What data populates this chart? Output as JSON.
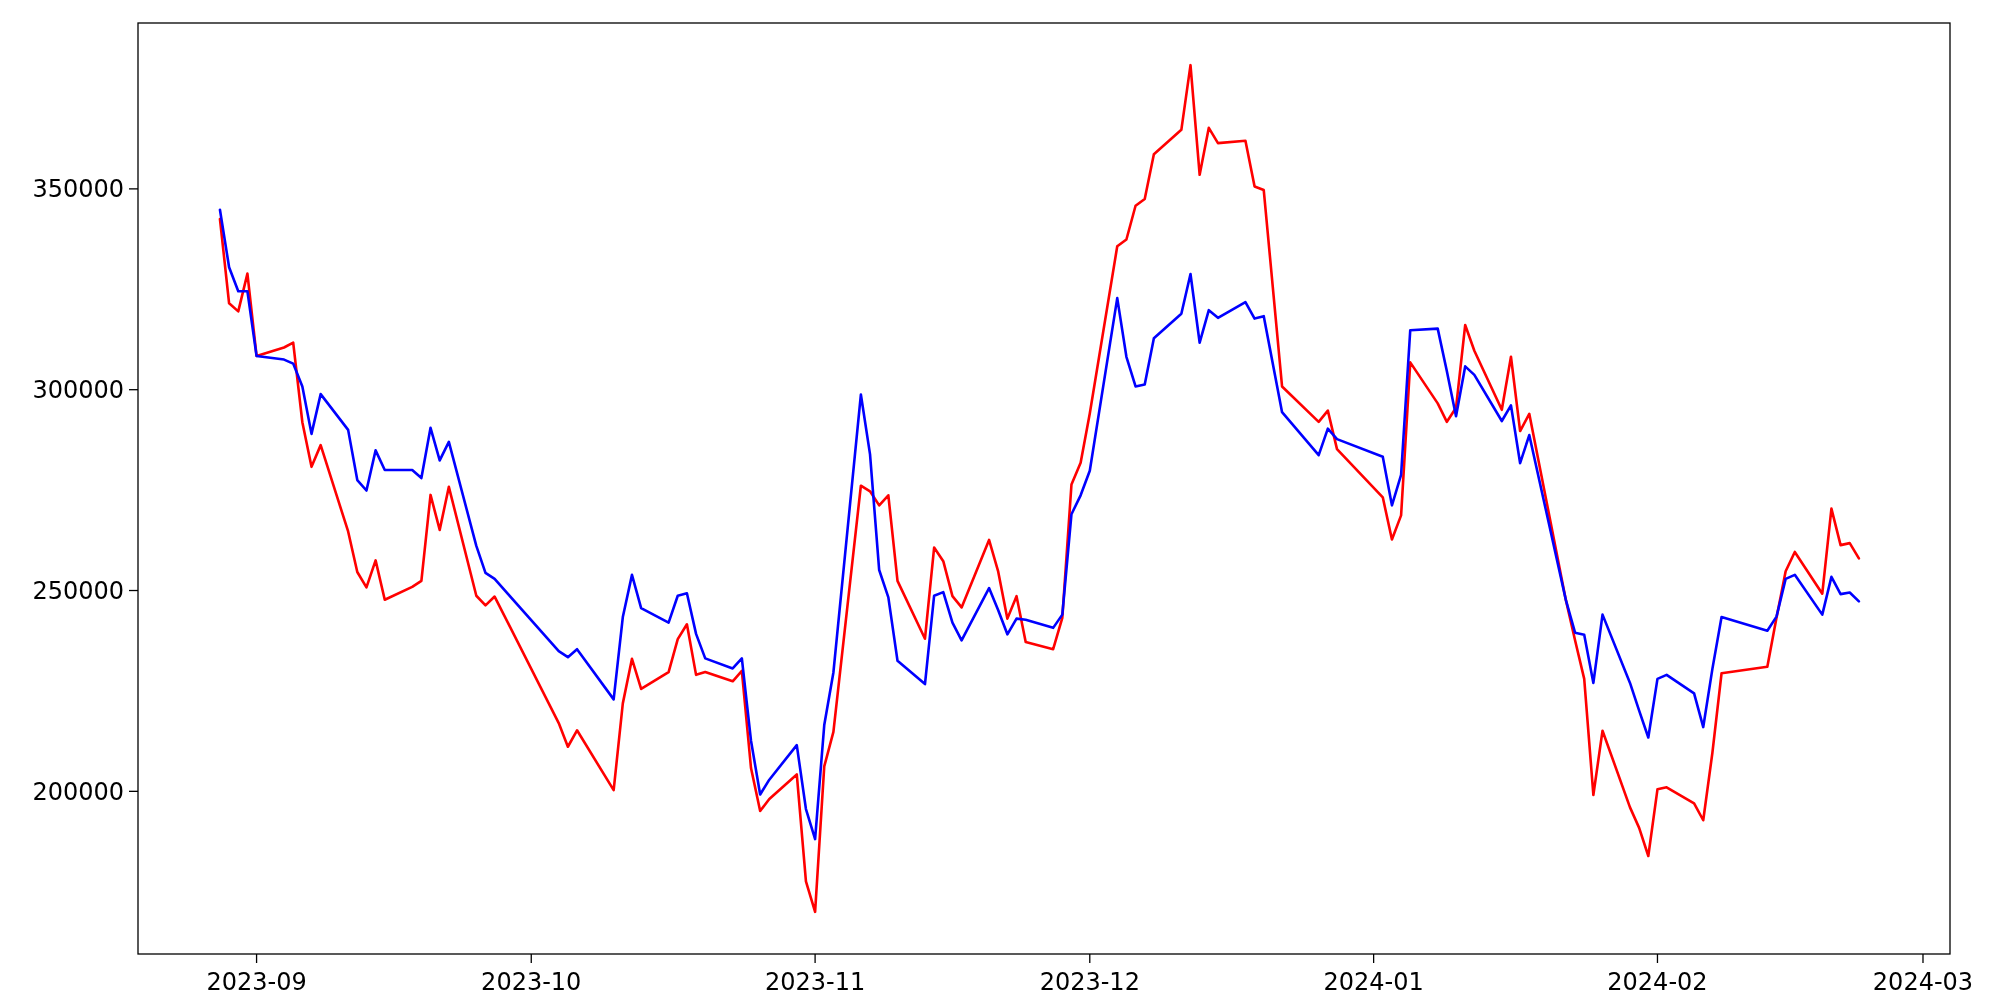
{
  "chart_data": {
    "type": "line",
    "xlim": [
      "2023-08-19T01:12",
      "2024-03-03T22:48"
    ],
    "ylim": [
      159500,
      391300
    ],
    "xticks": [
      {
        "value": "2023-09-01",
        "label": "2023-09"
      },
      {
        "value": "2023-10-01",
        "label": "2023-10"
      },
      {
        "value": "2023-11-01",
        "label": "2023-11"
      },
      {
        "value": "2023-12-01",
        "label": "2023-12"
      },
      {
        "value": "2024-01-01",
        "label": "2024-01"
      },
      {
        "value": "2024-02-01",
        "label": "2024-02"
      },
      {
        "value": "2024-03-01",
        "label": "2024-03"
      }
    ],
    "yticks": [
      200000,
      250000,
      300000,
      350000
    ],
    "grid": false,
    "marker": "none",
    "line_style": "solid",
    "x": [
      "2023-08-28",
      "2023-08-29",
      "2023-08-30",
      "2023-08-31",
      "2023-09-01",
      "2023-09-04",
      "2023-09-05",
      "2023-09-06",
      "2023-09-07",
      "2023-09-08",
      "2023-09-11",
      "2023-09-12",
      "2023-09-13",
      "2023-09-14",
      "2023-09-15",
      "2023-09-18",
      "2023-09-19",
      "2023-09-20",
      "2023-09-21",
      "2023-09-22",
      "2023-09-25",
      "2023-09-26",
      "2023-09-27",
      "2023-10-04",
      "2023-10-05",
      "2023-10-06",
      "2023-10-10",
      "2023-10-11",
      "2023-10-12",
      "2023-10-13",
      "2023-10-16",
      "2023-10-17",
      "2023-10-18",
      "2023-10-19",
      "2023-10-20",
      "2023-10-23",
      "2023-10-24",
      "2023-10-25",
      "2023-10-26",
      "2023-10-27",
      "2023-10-30",
      "2023-10-31",
      "2023-11-01",
      "2023-11-02",
      "2023-11-03",
      "2023-11-06",
      "2023-11-07",
      "2023-11-08",
      "2023-11-09",
      "2023-11-10",
      "2023-11-13",
      "2023-11-14",
      "2023-11-15",
      "2023-11-16",
      "2023-11-17",
      "2023-11-20",
      "2023-11-21",
      "2023-11-22",
      "2023-11-23",
      "2023-11-24",
      "2023-11-27",
      "2023-11-28",
      "2023-11-29",
      "2023-11-30",
      "2023-12-01",
      "2023-12-04",
      "2023-12-05",
      "2023-12-06",
      "2023-12-07",
      "2023-12-08",
      "2023-12-11",
      "2023-12-12",
      "2023-12-13",
      "2023-12-14",
      "2023-12-15",
      "2023-12-18",
      "2023-12-19",
      "2023-12-20",
      "2023-12-22",
      "2023-12-26",
      "2023-12-27",
      "2023-12-28",
      "2024-01-02",
      "2024-01-03",
      "2024-01-04",
      "2024-01-05",
      "2024-01-08",
      "2024-01-09",
      "2024-01-10",
      "2024-01-11",
      "2024-01-12",
      "2024-01-15",
      "2024-01-16",
      "2024-01-17",
      "2024-01-18",
      "2024-01-22",
      "2024-01-23",
      "2024-01-24",
      "2024-01-25",
      "2024-01-26",
      "2024-01-29",
      "2024-01-30",
      "2024-01-31",
      "2024-02-01",
      "2024-02-02",
      "2024-02-05",
      "2024-02-06",
      "2024-02-07",
      "2024-02-08",
      "2024-02-13",
      "2024-02-14",
      "2024-02-15",
      "2024-02-16",
      "2024-02-19",
      "2024-02-20",
      "2024-02-21",
      "2024-02-22",
      "2024-02-23"
    ],
    "series": [
      {
        "color": "#ff0000",
        "values": [
          342500,
          321500,
          319500,
          328900,
          308400,
          310500,
          311700,
          291900,
          280800,
          286200,
          264700,
          254600,
          250800,
          257500,
          247700,
          250900,
          252400,
          273800,
          265100,
          275800,
          248700,
          246300,
          248500,
          217000,
          211100,
          215200,
          200300,
          221900,
          233000,
          225500,
          229700,
          237900,
          241600,
          229000,
          229700,
          227400,
          230000,
          205800,
          195100,
          198100,
          204200,
          177600,
          170000,
          206200,
          214800,
          276100,
          274700,
          271200,
          273700,
          252400,
          238000,
          260700,
          257300,
          248600,
          245800,
          262600,
          254700,
          243000,
          248600,
          237200,
          235400,
          243200,
          276400,
          281800,
          294100,
          335700,
          337400,
          345800,
          347500,
          358600,
          364700,
          380800,
          353500,
          365200,
          361400,
          362000,
          350600,
          349700,
          300800,
          292000,
          294800,
          285200,
          273200,
          262700,
          268700,
          306800,
          296600,
          292000,
          295500,
          316100,
          309700,
          295000,
          308200,
          289700,
          294000,
          247600,
          237600,
          228000,
          199100,
          215100,
          196000,
          190900,
          183900,
          200500,
          201000,
          197000,
          192800,
          209600,
          229400,
          231000,
          243200,
          254800,
          259600,
          249200,
          270400,
          261300,
          261800,
          258000
        ]
      },
      {
        "color": "#0000ff",
        "values": [
          344800,
          330500,
          324500,
          324500,
          308400,
          307500,
          306500,
          300800,
          289000,
          298900,
          290000,
          277500,
          274900,
          284900,
          280000,
          280000,
          278000,
          290500,
          282400,
          287000,
          261100,
          254400,
          252900,
          234900,
          233400,
          235400,
          222900,
          243400,
          253900,
          245600,
          242000,
          248700,
          249300,
          239200,
          233100,
          230600,
          233100,
          212600,
          199200,
          202900,
          211500,
          195600,
          188100,
          216500,
          229600,
          298800,
          283900,
          255100,
          248300,
          232500,
          226700,
          248700,
          249600,
          242000,
          237600,
          250600,
          245100,
          239100,
          243000,
          242700,
          240700,
          244000,
          269000,
          273700,
          279800,
          322800,
          308200,
          300800,
          301300,
          312800,
          318900,
          328800,
          311700,
          319800,
          317900,
          321800,
          317700,
          318300,
          294400,
          283700,
          290300,
          287700,
          283300,
          271200,
          278800,
          314800,
          315200,
          304600,
          293400,
          305800,
          303700,
          292200,
          296100,
          281700,
          288700,
          247600,
          239500,
          239000,
          227000,
          244000,
          227000,
          220100,
          213400,
          228000,
          229000,
          224400,
          216000,
          230500,
          243400,
          240000,
          243500,
          252900,
          253900,
          244000,
          253400,
          249100,
          249500,
          247300
        ]
      }
    ]
  }
}
